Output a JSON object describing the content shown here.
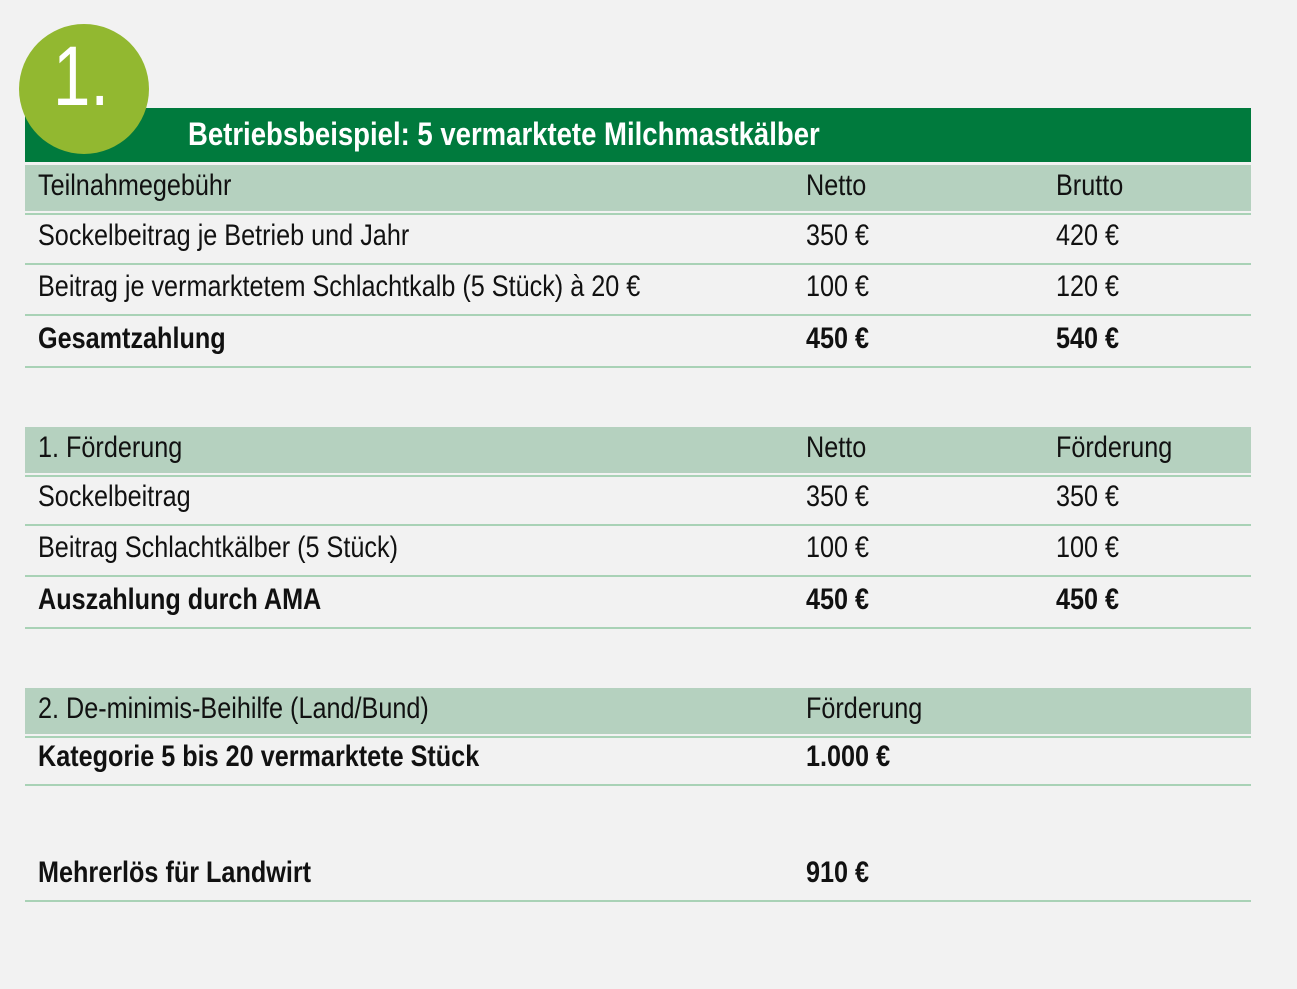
{
  "badge": "1.",
  "title": "Betriebsbeispiel: 5 vermarktete Milchmastkälber",
  "colors": {
    "title_bg": "#007a3d",
    "badge": "#92b830",
    "header_row": "#b5d1bf",
    "rule": "#a9d2b6",
    "background": "#f2f2f2"
  },
  "table1": {
    "header": [
      "Teilnahmegebühr",
      "Netto",
      "Brutto"
    ],
    "rows": [
      [
        "Sockelbeitrag je Betrieb und Jahr",
        "350 €",
        "420 €"
      ],
      [
        "Beitrag je vermarktetem Schlachtkalb (5 Stück) à 20 €",
        "100 €",
        "120 €"
      ],
      [
        "Gesamtzahlung",
        "450 €",
        "540 €"
      ]
    ]
  },
  "table2": {
    "header": [
      "1. Förderung",
      "Netto",
      "Förderung"
    ],
    "rows": [
      [
        "Sockelbeitrag",
        "350 €",
        "350 €"
      ],
      [
        "Beitrag Schlachtkälber (5 Stück)",
        "100 €",
        "100 €"
      ],
      [
        "Auszahlung durch AMA",
        "450 €",
        "450 €"
      ]
    ]
  },
  "table3": {
    "header": [
      "2. De-minimis-Beihilfe (Land/Bund)",
      "Förderung"
    ],
    "rows": [
      [
        "Kategorie 5 bis 20 vermarktete Stück",
        "1.000 €"
      ]
    ]
  },
  "result": [
    "Mehrerlös für Landwirt",
    "910 €"
  ]
}
